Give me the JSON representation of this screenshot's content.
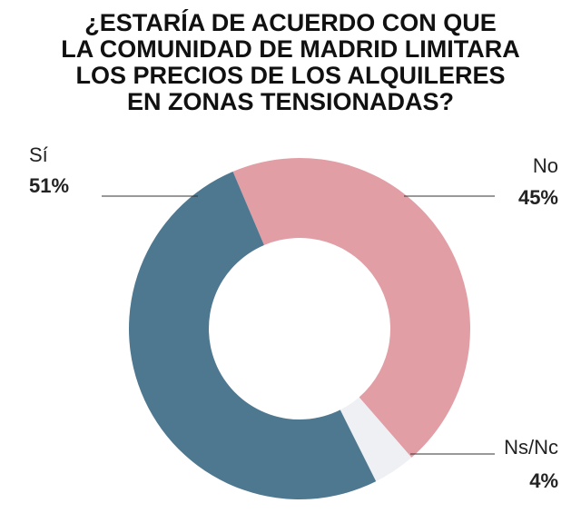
{
  "chart_data": {
    "type": "donut",
    "title": [
      "¿ESTARÍA DE ACUERDO CON QUE",
      "LA COMUNIDAD DE MADRID LIMITARA",
      "LOS PRECIOS DE LOS ALQUILERES",
      "EN ZONAS TENSIONADAS?"
    ],
    "categories": [
      "No",
      "Ns/Nc",
      "Sí"
    ],
    "values": [
      45,
      4,
      51
    ],
    "value_labels": [
      "45%",
      "4%",
      "51%"
    ],
    "colors": [
      "#e29ea5",
      "#eef0f3",
      "#4e7790"
    ]
  }
}
